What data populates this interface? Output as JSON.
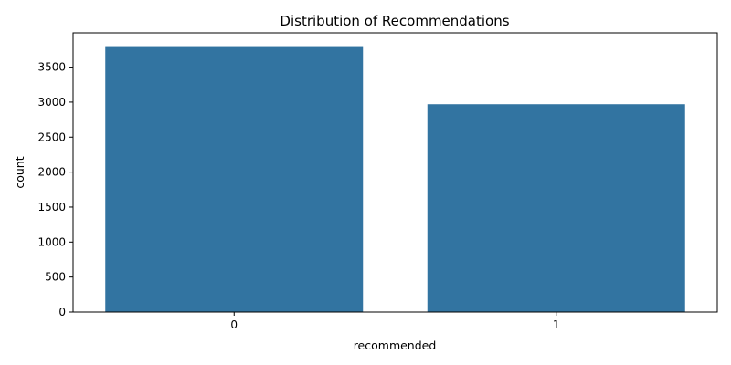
{
  "chart_data": {
    "type": "bar",
    "title": "Distribution of Recommendations",
    "xlabel": "recommended",
    "ylabel": "count",
    "categories": [
      "0",
      "1"
    ],
    "values": [
      3800,
      2970
    ],
    "ylim": [
      0,
      3990
    ],
    "yticks": [
      0,
      500,
      1000,
      1500,
      2000,
      2500,
      3000,
      3500
    ],
    "bar_color": "#3274a1",
    "grid": false
  }
}
